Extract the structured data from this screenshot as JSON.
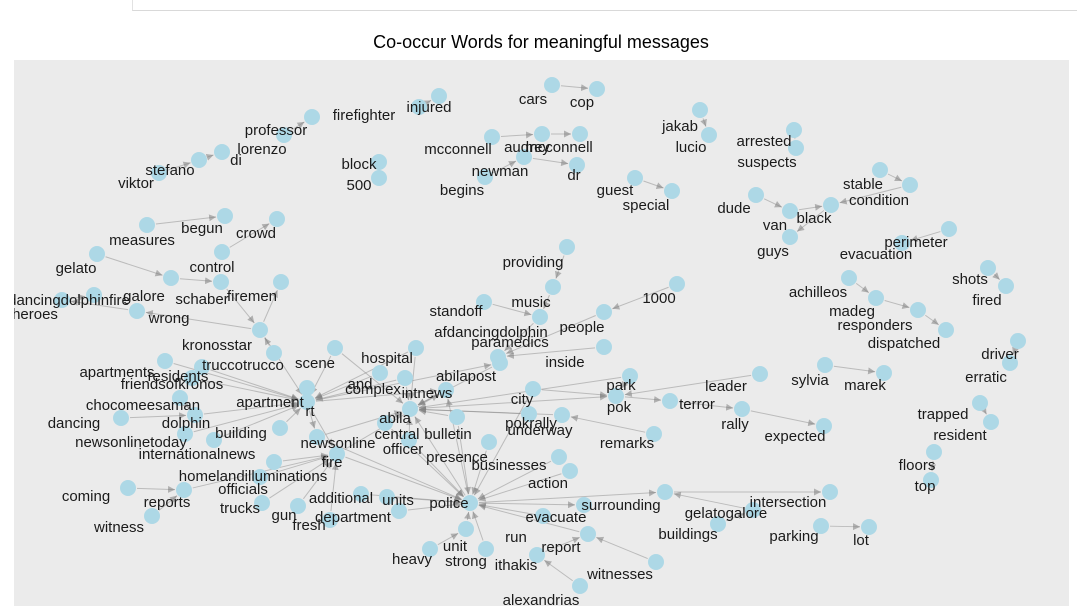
{
  "title": "Co-occur Words for meaningful messages",
  "colors": {
    "panel": "#ebebeb",
    "node": "#add8e6",
    "edge": "#808080",
    "text": "#1a1a1a"
  },
  "nodes": [
    "injured",
    "firefighter",
    "professor",
    "lorenzo",
    "di",
    "stefano",
    "viktor",
    "block",
    "500",
    "cars",
    "cop",
    "mcconnell",
    "audrey",
    "mcconnell2",
    "newman",
    "dr",
    "begins",
    "guest",
    "special",
    "jakab",
    "lucio",
    "arrested",
    "suspects",
    "dude",
    "van",
    "black",
    "stable",
    "condition",
    "guys",
    "perimeter",
    "evacuation",
    "shots",
    "fired",
    "measures",
    "begun",
    "crowd",
    "gelato",
    "control",
    "galore",
    "schaber",
    "firemen",
    "heroes",
    "dancingdolphinfire",
    "wrong",
    "kronosstar",
    "providing",
    "music",
    "1000",
    "standoff",
    "afdancingdolphin",
    "people",
    "paramedics",
    "abilapost",
    "inside",
    "achilleos",
    "madeg",
    "responders",
    "dispatched",
    "driver",
    "erratic",
    "hospital",
    "scene",
    "truccotrucco",
    "residents",
    "apartments",
    "friendsofkronos",
    "and",
    "complex",
    "intnews",
    "chocomeesaman",
    "dolphin",
    "dancing",
    "apartment",
    "newsonlinetoday",
    "internationalnews",
    "building",
    "rt",
    "city",
    "park",
    "leader",
    "sylvia",
    "marek",
    "abila",
    "pok",
    "terror",
    "rally",
    "expected",
    "pokrally",
    "central",
    "bulletin",
    "underway",
    "officer",
    "remarks",
    "newsonline",
    "fire",
    "trapped",
    "resident",
    "presence",
    "businesses",
    "floors",
    "top",
    "homelandilluminations",
    "officials",
    "coming",
    "reports",
    "witness",
    "trucks",
    "action",
    "additional",
    "gun",
    "fresh",
    "units",
    "police",
    "department",
    "surrounding",
    "intersection",
    "gelatogalore",
    "buildings",
    "parking",
    "lot",
    "evacuate",
    "run",
    "report",
    "unit",
    "heavy",
    "strong",
    "ithakis",
    "witnesses",
    "alexandrias"
  ],
  "labels": {
    "injured": "injured",
    "firefighter": "firefighter",
    "professor": "professor",
    "lorenzo": "lorenzo",
    "di": "di",
    "stefano": "stefano",
    "viktor": "viktor",
    "block": "block",
    "500": "500",
    "cars": "cars",
    "cop": "cop",
    "mcconnell": "mcconnell",
    "audrey": "audrey",
    "mcconnell2": "mcconnell",
    "newman": "newman",
    "dr": "dr",
    "begins": "begins",
    "guest": "guest",
    "special": "special",
    "jakab": "jakab",
    "lucio": "lucio",
    "arrested": "arrested",
    "suspects": "suspects",
    "dude": "dude",
    "van": "van",
    "black": "black",
    "stable": "stable",
    "condition": "condition",
    "guys": "guys",
    "perimeter": "perimeter",
    "evacuation": "evacuation",
    "shots": "shots",
    "fired": "fired",
    "measures": "measures",
    "begun": "begun",
    "crowd": "crowd",
    "gelato": "gelato",
    "control": "control",
    "galore": "galore",
    "schaber": "schaber",
    "firemen": "firemen",
    "heroes": "heroes",
    "dancingdolphinfire": "dancingdolphinfire",
    "wrong": "wrong",
    "kronosstar": "kronosstar",
    "providing": "providing",
    "music": "music",
    "1000": "1000",
    "standoff": "standoff",
    "afdancingdolphin": "afdancingdolphin",
    "people": "people",
    "paramedics": "paramedics",
    "abilapost": "abilapost",
    "inside": "inside",
    "achilleos": "achilleos",
    "madeg": "madeg",
    "responders": "responders",
    "dispatched": "dispatched",
    "driver": "driver",
    "erratic": "erratic",
    "hospital": "hospital",
    "scene": "scene",
    "truccotrucco": "truccotrucco",
    "residents": "residents",
    "apartments": "apartments",
    "friendsofkronos": "friendsofkronos",
    "and": "and",
    "complex": "complex",
    "intnews": "intnews",
    "chocomeesaman": "chocomeesaman",
    "dolphin": "dolphin",
    "dancing": "dancing",
    "apartment": "apartment",
    "newsonlinetoday": "newsonlinetoday",
    "internationalnews": "internationalnews",
    "building": "building",
    "rt": "rt",
    "city": "city",
    "park": "park",
    "leader": "leader",
    "sylvia": "sylvia",
    "marek": "marek",
    "abila": "abila",
    "pok": "pok",
    "terror": "terror",
    "rally": "rally",
    "expected": "expected",
    "pokrally": "pokrally",
    "central": "central",
    "bulletin": "bulletin",
    "underway": "underway",
    "officer": "officer",
    "remarks": "remarks",
    "newsonline": "newsonline",
    "fire": "fire",
    "trapped": "trapped",
    "resident": "resident",
    "presence": "presence",
    "businesses": "businesses",
    "floors": "floors",
    "top": "top",
    "homelandilluminations": "homelandilluminations",
    "officials": "officials",
    "coming": "coming",
    "reports": "reports",
    "witness": "witness",
    "trucks": "trucks",
    "action": "action",
    "additional": "additional",
    "gun": "gun",
    "fresh": "fresh",
    "units": "units",
    "police": "police",
    "department": "department",
    "surrounding": "surrounding",
    "intersection": "intersection",
    "gelatogalore": "gelatogalore",
    "buildings": "buildings",
    "parking": "parking",
    "lot": "lot",
    "evacuate": "evacuate",
    "run": "run",
    "report": "report",
    "unit": "unit",
    "heavy": "heavy",
    "strong": "strong",
    "ithakis": "ithakis",
    "witnesses": "witnesses",
    "alexandrias": "alexandrias"
  },
  "edges": [
    [
      "firefighter",
      "injured"
    ],
    [
      "lorenzo",
      "professor"
    ],
    [
      "stefano",
      "di"
    ],
    [
      "viktor",
      "stefano"
    ],
    [
      "block",
      "500"
    ],
    [
      "cars",
      "cop"
    ],
    [
      "mcconnell",
      "audrey"
    ],
    [
      "audrey",
      "mcconnell2"
    ],
    [
      "newman",
      "dr"
    ],
    [
      "begins",
      "newman"
    ],
    [
      "guest",
      "special"
    ],
    [
      "jakab",
      "lucio"
    ],
    [
      "arrested",
      "suspects"
    ],
    [
      "dude",
      "van"
    ],
    [
      "van",
      "black"
    ],
    [
      "black",
      "guys"
    ],
    [
      "stable",
      "condition"
    ],
    [
      "condition",
      "black"
    ],
    [
      "perimeter",
      "evacuation"
    ],
    [
      "shots",
      "fired"
    ],
    [
      "measures",
      "begun"
    ],
    [
      "control",
      "crowd"
    ],
    [
      "gelato",
      "galore"
    ],
    [
      "galore",
      "schaber"
    ],
    [
      "schaber",
      "kronosstar"
    ],
    [
      "kronosstar",
      "wrong"
    ],
    [
      "wrong",
      "heroes"
    ],
    [
      "kronosstar",
      "firemen"
    ],
    [
      "heroes",
      "dancingdolphinfire"
    ],
    [
      "providing",
      "music"
    ],
    [
      "music",
      "afdancingdolphin"
    ],
    [
      "1000",
      "people"
    ],
    [
      "standoff",
      "afdancingdolphin"
    ],
    [
      "afdancingdolphin",
      "paramedics"
    ],
    [
      "people",
      "paramedics"
    ],
    [
      "abilapost",
      "paramedics"
    ],
    [
      "inside",
      "paramedics"
    ],
    [
      "achilleos",
      "madeg"
    ],
    [
      "madeg",
      "responders"
    ],
    [
      "responders",
      "dispatched"
    ],
    [
      "driver",
      "erratic"
    ],
    [
      "kronosstar",
      "rt"
    ],
    [
      "scene",
      "rt"
    ],
    [
      "hospital",
      "rt"
    ],
    [
      "residents",
      "rt"
    ],
    [
      "truccotrucco",
      "kronosstar"
    ],
    [
      "apartments",
      "rt"
    ],
    [
      "friendsofkronos",
      "rt"
    ],
    [
      "and",
      "rt"
    ],
    [
      "complex",
      "rt"
    ],
    [
      "rt",
      "intnews"
    ],
    [
      "rt",
      "abilapost"
    ],
    [
      "chocomeesaman",
      "dolphin"
    ],
    [
      "dancing",
      "dolphin"
    ],
    [
      "apartment",
      "rt"
    ],
    [
      "dolphin",
      "rt"
    ],
    [
      "newsonlinetoday",
      "rt"
    ],
    [
      "internationalnews",
      "rt"
    ],
    [
      "building",
      "rt"
    ],
    [
      "rt",
      "fire"
    ],
    [
      "rt",
      "newsonline"
    ],
    [
      "fire",
      "police"
    ],
    [
      "city",
      "pok"
    ],
    [
      "park",
      "pok"
    ],
    [
      "pok",
      "terror"
    ],
    [
      "terror",
      "rally"
    ],
    [
      "rally",
      "expected"
    ],
    [
      "leader",
      "pok"
    ],
    [
      "sylvia",
      "marek"
    ],
    [
      "abila",
      "pok"
    ],
    [
      "pokrally",
      "abila"
    ],
    [
      "central",
      "abila"
    ],
    [
      "bulletin",
      "abila"
    ],
    [
      "underway",
      "abila"
    ],
    [
      "officer",
      "abila"
    ],
    [
      "remarks",
      "underway"
    ],
    [
      "newsonline",
      "abila"
    ],
    [
      "trapped",
      "resident"
    ],
    [
      "presence",
      "police"
    ],
    [
      "businesses",
      "police"
    ],
    [
      "floors",
      "top"
    ],
    [
      "homelandilluminations",
      "fire"
    ],
    [
      "officials",
      "fire"
    ],
    [
      "coming",
      "reports"
    ],
    [
      "reports",
      "fire"
    ],
    [
      "witness",
      "reports"
    ],
    [
      "trucks",
      "fire"
    ],
    [
      "action",
      "police"
    ],
    [
      "additional",
      "police"
    ],
    [
      "gun",
      "fire"
    ],
    [
      "fresh",
      "fire"
    ],
    [
      "units",
      "police"
    ],
    [
      "department",
      "police"
    ],
    [
      "police",
      "surrounding"
    ],
    [
      "surrounding",
      "intersection"
    ],
    [
      "gelatogalore",
      "surrounding"
    ],
    [
      "buildings",
      "gelatogalore"
    ],
    [
      "parking",
      "lot"
    ],
    [
      "police",
      "evacuate"
    ],
    [
      "run",
      "police"
    ],
    [
      "report",
      "police"
    ],
    [
      "unit",
      "police"
    ],
    [
      "heavy",
      "unit"
    ],
    [
      "strong",
      "police"
    ],
    [
      "ithakis",
      "report"
    ],
    [
      "witnesses",
      "report"
    ],
    [
      "alexandrias",
      "ithakis"
    ],
    [
      "police",
      "abila"
    ],
    [
      "police",
      "intnews"
    ],
    [
      "central",
      "police"
    ],
    [
      "bulletin",
      "police"
    ],
    [
      "fire",
      "intnews"
    ],
    [
      "newsonline",
      "police"
    ],
    [
      "officer",
      "police"
    ],
    [
      "hospital",
      "abila"
    ],
    [
      "scene",
      "abila"
    ],
    [
      "complex",
      "abila"
    ],
    [
      "intnews",
      "abila"
    ],
    [
      "abilapost",
      "abila"
    ],
    [
      "city",
      "police"
    ],
    [
      "park",
      "abila"
    ]
  ]
}
